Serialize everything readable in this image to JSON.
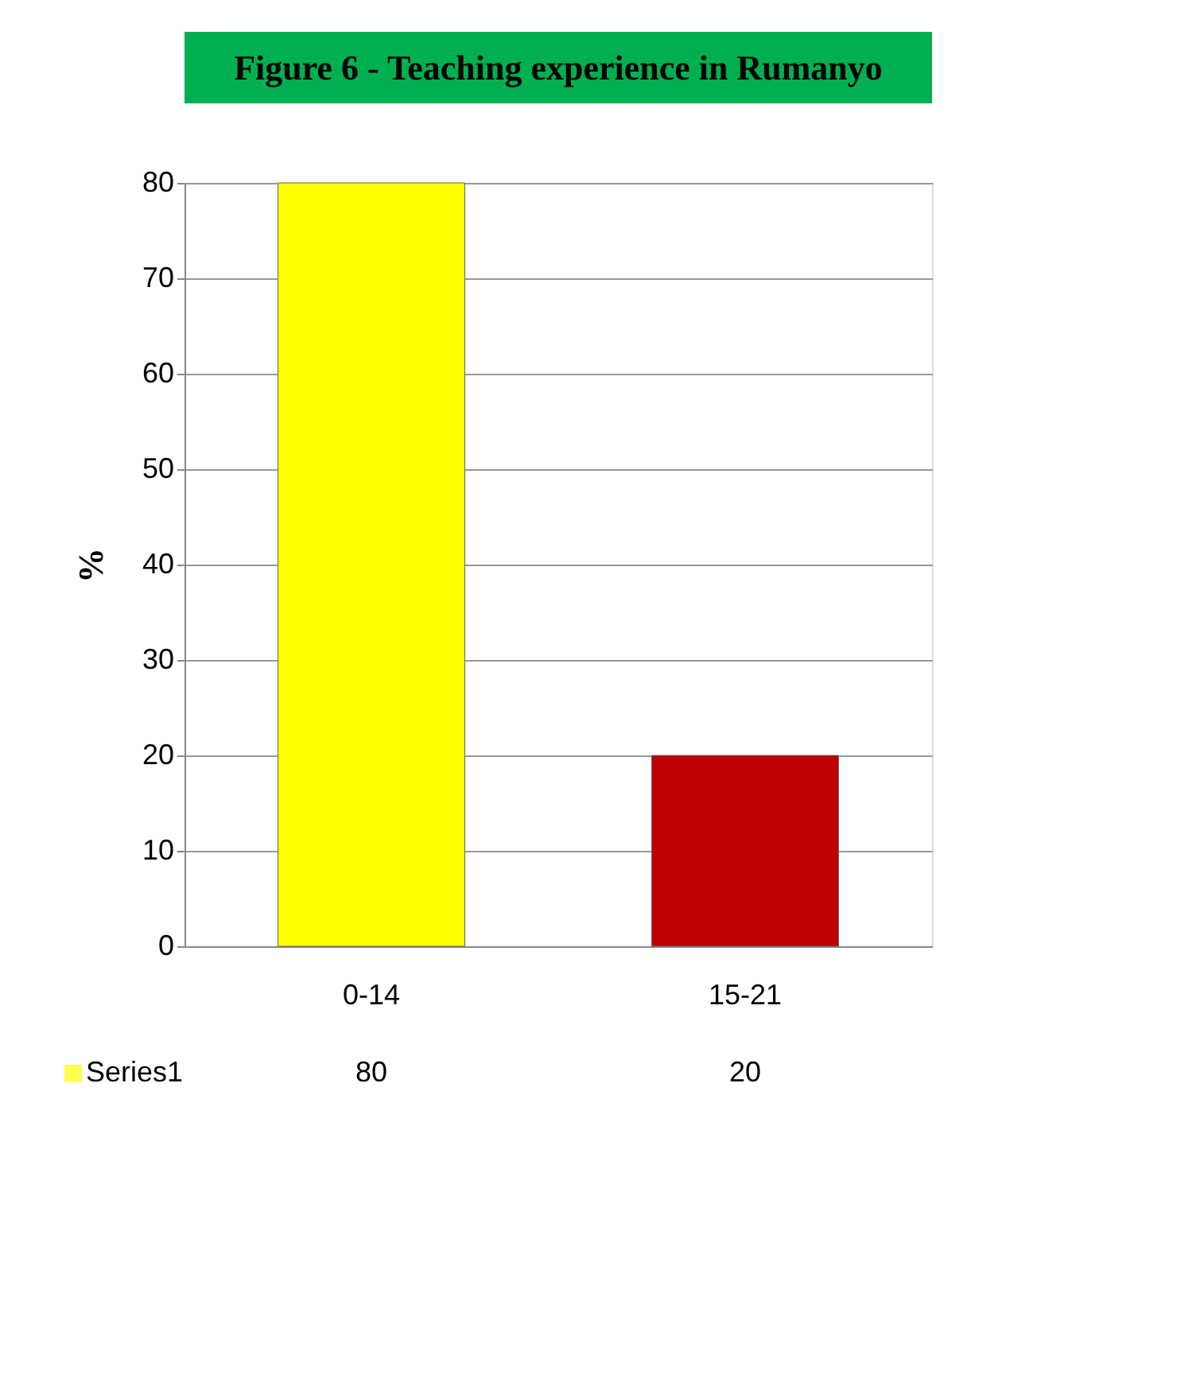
{
  "chart_data": {
    "type": "bar",
    "title": "Figure 6 - Teaching experience in Rumanyo",
    "ylabel": "%",
    "categories": [
      "0-14",
      "15-21"
    ],
    "series": [
      {
        "name": "Series1",
        "colors": [
          "#ffff00",
          "#c00000"
        ],
        "values": [
          80,
          20
        ]
      }
    ],
    "ylim": [
      0,
      80
    ],
    "yticks": [
      0,
      10,
      20,
      30,
      40,
      50,
      60,
      70,
      80
    ],
    "grid": "y",
    "legend": "bottom",
    "data_labels": true
  }
}
